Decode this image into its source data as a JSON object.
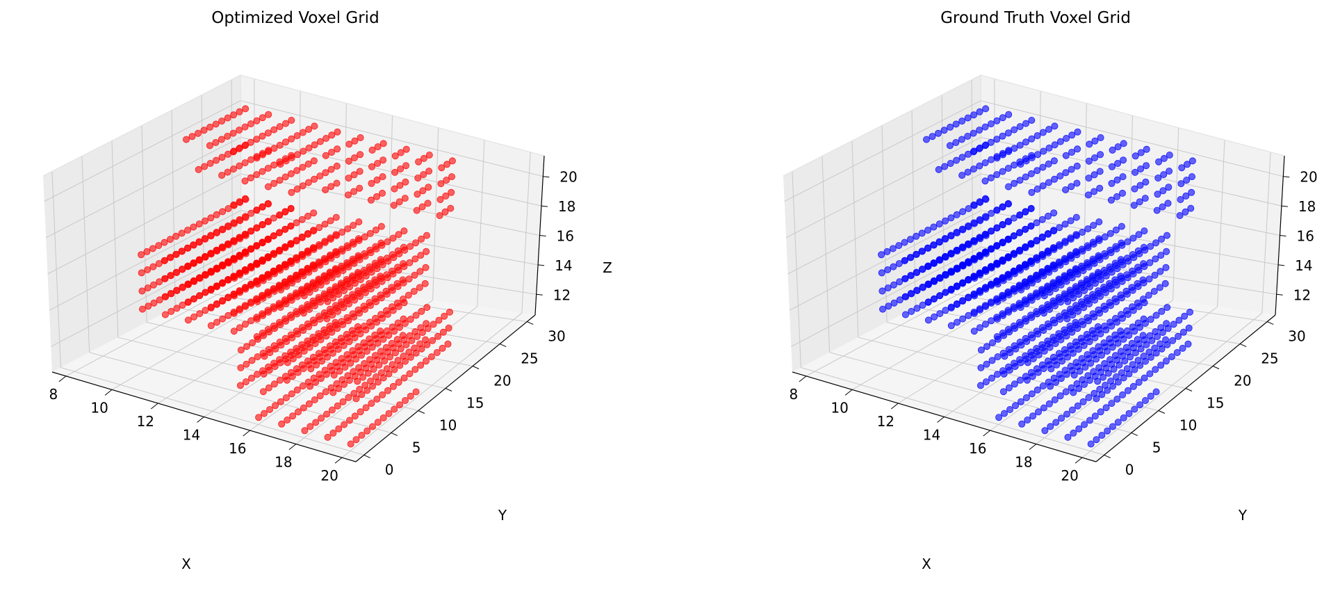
{
  "chart_data": [
    {
      "type": "scatter",
      "projection": "3d",
      "title": "Optimized Voxel Grid",
      "color": "#ff0000",
      "xlabel": "X",
      "ylabel": "Y",
      "zlabel": "Z",
      "xlim": [
        7.4,
        20.6
      ],
      "ylim": [
        -1.5,
        31.5
      ],
      "zlim": [
        10.6,
        21.4
      ],
      "xticks": [
        8,
        10,
        12,
        14,
        16,
        18,
        20
      ],
      "yticks": [
        0,
        5,
        10,
        15,
        20,
        25,
        30
      ],
      "zticks": [
        12,
        14,
        16,
        18,
        20
      ],
      "grid": true,
      "voxel_blocks": [
        {
          "x": [
            8,
            12
          ],
          "y": [
            20,
            30
          ],
          "z": [
            20,
            20
          ]
        },
        {
          "x": [
            8,
            12
          ],
          "y": [
            22,
            30
          ],
          "z": [
            18,
            18
          ]
        },
        {
          "x": [
            9,
            11
          ],
          "y": [
            24,
            26
          ],
          "z": [
            16,
            16
          ]
        },
        {
          "x": [
            12,
            17
          ],
          "y": [
            28,
            30
          ],
          "z": [
            17,
            20
          ]
        },
        {
          "x": [
            8,
            16
          ],
          "y": [
            12,
            30
          ],
          "z": [
            12,
            15
          ]
        },
        {
          "x": [
            14,
            19
          ],
          "y": [
            5,
            22
          ],
          "z": [
            11,
            13
          ]
        },
        {
          "x": [
            16,
            20
          ],
          "y": [
            0,
            12
          ],
          "z": [
            11,
            11
          ]
        }
      ]
    },
    {
      "type": "scatter",
      "projection": "3d",
      "title": "Ground Truth Voxel Grid",
      "color": "#0000ff",
      "xlabel": "X",
      "ylabel": "Y",
      "zlabel": "",
      "xlim": [
        7.4,
        20.6
      ],
      "ylim": [
        -1.5,
        31.5
      ],
      "zlim": [
        10.6,
        21.4
      ],
      "xticks": [
        8,
        10,
        12,
        14,
        16,
        18,
        20
      ],
      "yticks": [
        0,
        5,
        10,
        15,
        20,
        25,
        30
      ],
      "zticks": [
        12,
        14,
        16,
        18,
        20
      ],
      "grid": true,
      "voxel_blocks": [
        {
          "x": [
            8,
            12
          ],
          "y": [
            20,
            30
          ],
          "z": [
            20,
            20
          ]
        },
        {
          "x": [
            8,
            12
          ],
          "y": [
            22,
            30
          ],
          "z": [
            18,
            18
          ]
        },
        {
          "x": [
            9,
            11
          ],
          "y": [
            24,
            26
          ],
          "z": [
            16,
            16
          ]
        },
        {
          "x": [
            12,
            17
          ],
          "y": [
            28,
            30
          ],
          "z": [
            17,
            20
          ]
        },
        {
          "x": [
            8,
            16
          ],
          "y": [
            12,
            30
          ],
          "z": [
            12,
            15
          ]
        },
        {
          "x": [
            14,
            19
          ],
          "y": [
            5,
            22
          ],
          "z": [
            11,
            13
          ]
        },
        {
          "x": [
            16,
            20
          ],
          "y": [
            0,
            12
          ],
          "z": [
            11,
            11
          ]
        }
      ]
    }
  ]
}
